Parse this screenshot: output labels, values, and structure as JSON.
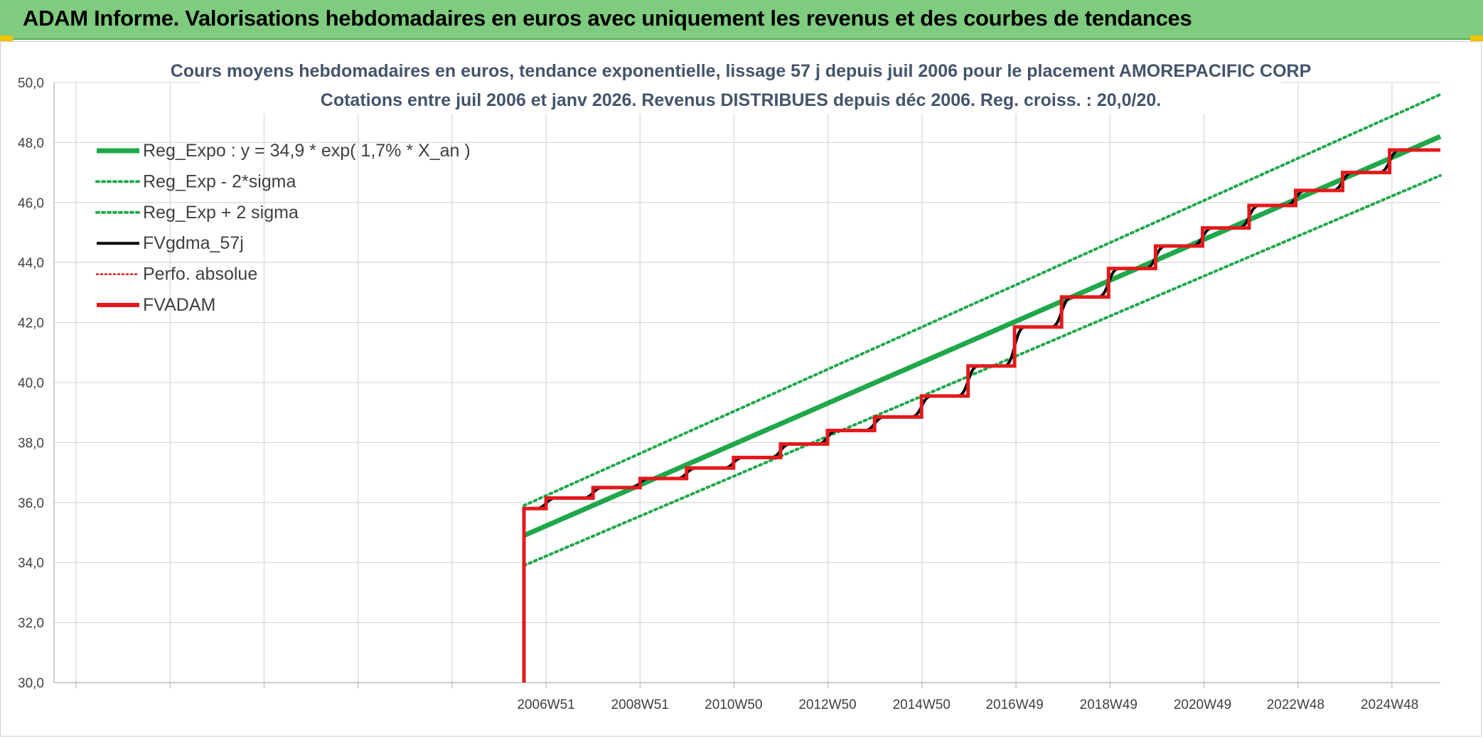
{
  "header": {
    "title": "ADAM Informe. Valorisations hebdomadaires en euros avec uniquement les revenus et des courbes de tendances"
  },
  "colors": {
    "banner": "#7fcb7f",
    "reg_expo": "#1fa84a",
    "sigma": "#1fa84a",
    "fvgdma": "#000000",
    "perfo": "#e31a1c",
    "fvadam": "#e31a1c"
  },
  "chart_data": {
    "type": "line",
    "title_line1": "Cours moyens hebdomadaires en euros, tendance exponentielle, lissage 57 j depuis juil 2006 pour le placement AMOREPACIFIC CORP",
    "title_line2": "Cotations entre juil 2006 et janv 2026. Revenus DISTRIBUES depuis déc 2006. Reg. croiss. : 20,0/20.",
    "ylim": [
      30,
      50
    ],
    "y_ticks": [
      "30,0",
      "32,0",
      "34,0",
      "36,0",
      "38,0",
      "40,0",
      "42,0",
      "44,0",
      "46,0",
      "48,0",
      "50,0"
    ],
    "xlim": [
      1996.5,
      2026.0
    ],
    "x_ticks": [
      {
        "label": "2006W51",
        "x": 2006.97
      },
      {
        "label": "2008W51",
        "x": 2008.97
      },
      {
        "label": "2010W50",
        "x": 2010.96
      },
      {
        "label": "2012W50",
        "x": 2012.96
      },
      {
        "label": "2014W50",
        "x": 2014.96
      },
      {
        "label": "2016W49",
        "x": 2016.94
      },
      {
        "label": "2018W49",
        "x": 2018.94
      },
      {
        "label": "2020W49",
        "x": 2020.94
      },
      {
        "label": "2022W48",
        "x": 2022.92
      },
      {
        "label": "2024W48",
        "x": 2024.92
      }
    ],
    "legend_position": "top-left",
    "grid": true,
    "series": [
      {
        "name": "Reg_Expo : y = 34,9 * exp( 1,7% *  X_an )",
        "style": "solid-thick",
        "color": "#1fa84a",
        "x": [
          2006.5,
          2026.0
        ],
        "y": [
          34.9,
          48.2
        ]
      },
      {
        "name": "Reg_Exp - 2*sigma",
        "style": "dotted",
        "color": "#1fa84a",
        "x": [
          2006.5,
          2026.0
        ],
        "y": [
          33.9,
          46.9
        ]
      },
      {
        "name": "Reg_Exp + 2 sigma",
        "style": "dotted",
        "color": "#1fa84a",
        "x": [
          2006.5,
          2026.0
        ],
        "y": [
          35.9,
          49.6
        ]
      },
      {
        "name": "FVgdma_57j",
        "style": "solid",
        "color": "#000000",
        "smooth": true
      },
      {
        "name": "Perfo. absolue",
        "style": "dotted",
        "color": "#e31a1c"
      },
      {
        "name": "FVADAM",
        "style": "solid-thick",
        "color": "#e31a1c",
        "kind": "step",
        "x": [
          2006.5,
          2006.5,
          2006.97,
          2007.97,
          2008.97,
          2009.96,
          2010.96,
          2011.96,
          2012.96,
          2013.96,
          2014.96,
          2015.95,
          2016.94,
          2017.94,
          2018.94,
          2019.94,
          2020.94,
          2021.93,
          2022.92,
          2023.92,
          2024.92,
          2026.0
        ],
        "y": [
          30.0,
          35.8,
          36.15,
          36.5,
          36.8,
          37.15,
          37.5,
          37.95,
          38.4,
          38.85,
          39.55,
          40.55,
          41.85,
          42.85,
          43.8,
          44.55,
          45.15,
          45.9,
          46.4,
          47.0,
          47.75,
          47.75
        ]
      }
    ]
  }
}
